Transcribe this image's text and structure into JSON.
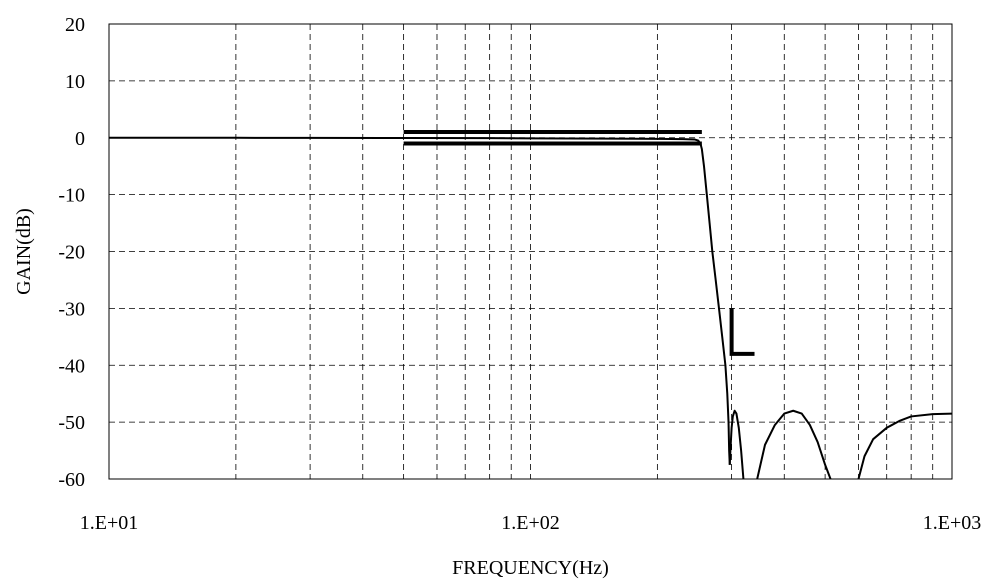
{
  "chart_data": {
    "type": "line",
    "title": "",
    "xlabel": "FREQUENCY(Hz)",
    "ylabel": "GAIN(dB)",
    "x_scale": "log",
    "xlim": [
      10,
      1000
    ],
    "ylim": [
      -60,
      20
    ],
    "x_ticks": [
      10,
      100,
      1000
    ],
    "x_tick_labels": [
      "1.E+01",
      "1.E+02",
      "1.E+03"
    ],
    "y_ticks": [
      20,
      10,
      0,
      -10,
      -20,
      -30,
      -40,
      -50,
      -60
    ],
    "y_tick_labels": [
      "20",
      "10",
      "0",
      "-10",
      "-20",
      "-30",
      "-40",
      "-50",
      "-60"
    ],
    "grid": true,
    "grid_style": "dashed",
    "legend": "none",
    "series": [
      {
        "color": "#000000",
        "x": [
          10,
          20,
          30,
          50,
          80,
          100,
          150,
          200,
          230,
          245,
          250,
          253,
          255,
          258,
          262,
          266,
          270,
          275,
          280,
          285,
          290,
          293,
          295,
          296,
          297
        ],
        "y": [
          0,
          -0.01,
          -0.02,
          -0.04,
          -0.07,
          -0.1,
          -0.15,
          -0.2,
          -0.25,
          -0.3,
          -0.5,
          -1,
          -2,
          -5,
          -10,
          -15,
          -20,
          -25,
          -30,
          -35,
          -40,
          -45,
          -50,
          -55,
          -57.5
        ]
      },
      {
        "color": "#000000",
        "x": [
          297,
          298,
          300,
          302,
          305,
          308,
          312,
          316,
          320
        ],
        "y": [
          -57.5,
          -55,
          -51,
          -49,
          -48,
          -48.5,
          -51,
          -55,
          -60
        ]
      },
      {
        "color": "#000000",
        "x": [
          345,
          360,
          380,
          400,
          420,
          440,
          460,
          480,
          500,
          515
        ],
        "y": [
          -60,
          -54,
          -50.5,
          -48.5,
          -48,
          -48.5,
          -50.5,
          -53.5,
          -57.5,
          -60
        ]
      },
      {
        "color": "#000000",
        "x": [
          600,
          620,
          650,
          700,
          750,
          800,
          900,
          1000
        ],
        "y": [
          -60,
          -56,
          -53,
          -51,
          -49.8,
          -49,
          -48.6,
          -48.5
        ]
      }
    ],
    "spec_limits": [
      {
        "name": "",
        "color": "#000000",
        "x": [
          50,
          255
        ],
        "y": [
          1,
          1
        ]
      },
      {
        "name": "",
        "color": "#000000",
        "x": [
          50,
          255
        ],
        "y": [
          -1,
          -1
        ]
      },
      {
        "name": "",
        "color": "#000000",
        "x": [
          300,
          300,
          340
        ],
        "y": [
          -30,
          -38,
          -38
        ]
      }
    ]
  }
}
